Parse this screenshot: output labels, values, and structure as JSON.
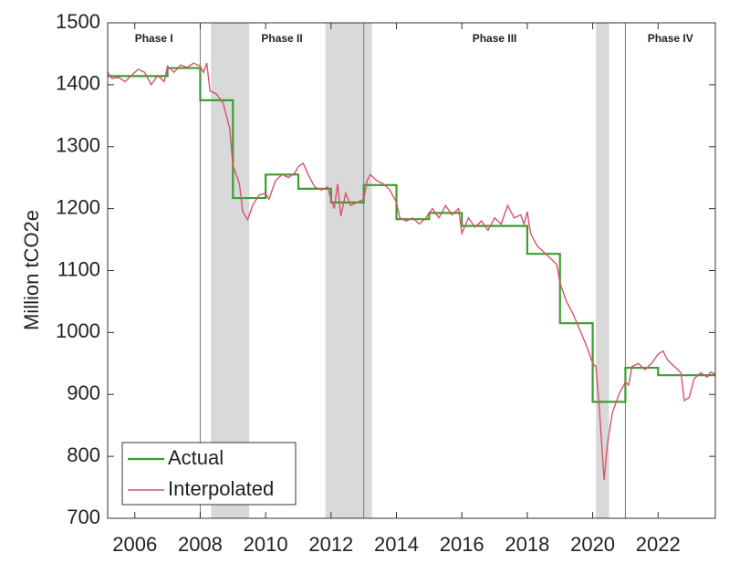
{
  "chart_data": {
    "type": "line",
    "ylabel": "Million tCO2e",
    "xlim": [
      2005.17,
      2023.75
    ],
    "ylim": [
      700,
      1500
    ],
    "xticks": [
      2006,
      2008,
      2010,
      2012,
      2014,
      2016,
      2018,
      2020,
      2022
    ],
    "yticks": [
      700,
      800,
      900,
      1000,
      1100,
      1200,
      1300,
      1400,
      1500
    ],
    "phase_lines": [
      2008,
      2013,
      2021
    ],
    "phases": [
      "Phase I",
      "Phase II",
      "Phase III",
      "Phase IV"
    ],
    "shaded": [
      [
        2008.33,
        2009.5
      ],
      [
        2011.83,
        2013.25
      ],
      [
        2020.1,
        2020.5
      ]
    ],
    "legend": "lower left",
    "series": [
      {
        "name": "Actual",
        "color": "#3a9e2f",
        "step": "post",
        "x": [
          2005,
          2006,
          2007,
          2008,
          2009,
          2010,
          2011,
          2012,
          2013,
          2014,
          2015,
          2016,
          2017,
          2018,
          2019,
          2020,
          2021,
          2022,
          2023
        ],
        "values": [
          1414,
          1414,
          1427,
          1375,
          1217,
          1255,
          1232,
          1210,
          1238,
          1183,
          1193,
          1172,
          1172,
          1127,
          1015,
          888,
          943,
          931,
          931
        ]
      },
      {
        "name": "Interpolated",
        "color": "#d9536b",
        "x": [
          2005.17,
          2005.3,
          2005.5,
          2005.7,
          2005.9,
          2006.1,
          2006.3,
          2006.5,
          2006.7,
          2006.9,
          2007.0,
          2007.2,
          2007.4,
          2007.6,
          2007.8,
          2008.0,
          2008.1,
          2008.2,
          2008.3,
          2008.5,
          2008.7,
          2008.9,
          2009.0,
          2009.2,
          2009.3,
          2009.45,
          2009.6,
          2009.8,
          2010.0,
          2010.1,
          2010.3,
          2010.5,
          2010.7,
          2010.9,
          2011.0,
          2011.15,
          2011.3,
          2011.5,
          2011.7,
          2011.9,
          2012.0,
          2012.1,
          2012.2,
          2012.3,
          2012.45,
          2012.6,
          2012.8,
          2013.0,
          2013.1,
          2013.2,
          2013.4,
          2013.6,
          2013.8,
          2014.0,
          2014.1,
          2014.3,
          2014.5,
          2014.7,
          2014.9,
          2015.1,
          2015.3,
          2015.5,
          2015.7,
          2015.9,
          2016.0,
          2016.2,
          2016.4,
          2016.6,
          2016.8,
          2017.0,
          2017.2,
          2017.4,
          2017.6,
          2017.8,
          2017.9,
          2018.0,
          2018.1,
          2018.3,
          2018.5,
          2018.7,
          2018.9,
          2019.0,
          2019.2,
          2019.4,
          2019.6,
          2019.8,
          2020.0,
          2020.1,
          2020.2,
          2020.35,
          2020.45,
          2020.6,
          2020.8,
          2021.0,
          2021.1,
          2021.2,
          2021.4,
          2021.6,
          2021.8,
          2022.0,
          2022.15,
          2022.3,
          2022.5,
          2022.7,
          2022.8,
          2022.95,
          2023.1,
          2023.3,
          2023.5,
          2023.6,
          2023.75
        ],
        "values": [
          1420,
          1410,
          1412,
          1405,
          1415,
          1425,
          1420,
          1400,
          1415,
          1405,
          1430,
          1420,
          1432,
          1428,
          1435,
          1430,
          1420,
          1435,
          1390,
          1385,
          1370,
          1330,
          1270,
          1240,
          1195,
          1182,
          1205,
          1222,
          1225,
          1215,
          1245,
          1255,
          1250,
          1258,
          1268,
          1273,
          1255,
          1235,
          1230,
          1235,
          1215,
          1200,
          1240,
          1188,
          1225,
          1205,
          1210,
          1215,
          1245,
          1255,
          1245,
          1240,
          1230,
          1210,
          1185,
          1180,
          1185,
          1175,
          1185,
          1200,
          1185,
          1205,
          1190,
          1200,
          1160,
          1185,
          1170,
          1180,
          1165,
          1185,
          1175,
          1205,
          1185,
          1190,
          1175,
          1195,
          1160,
          1140,
          1130,
          1120,
          1110,
          1080,
          1050,
          1030,
          1005,
          980,
          950,
          945,
          880,
          762,
          820,
          870,
          900,
          920,
          915,
          945,
          950,
          940,
          950,
          965,
          970,
          955,
          945,
          935,
          890,
          895,
          925,
          935,
          928,
          936,
          933
        ]
      }
    ]
  }
}
